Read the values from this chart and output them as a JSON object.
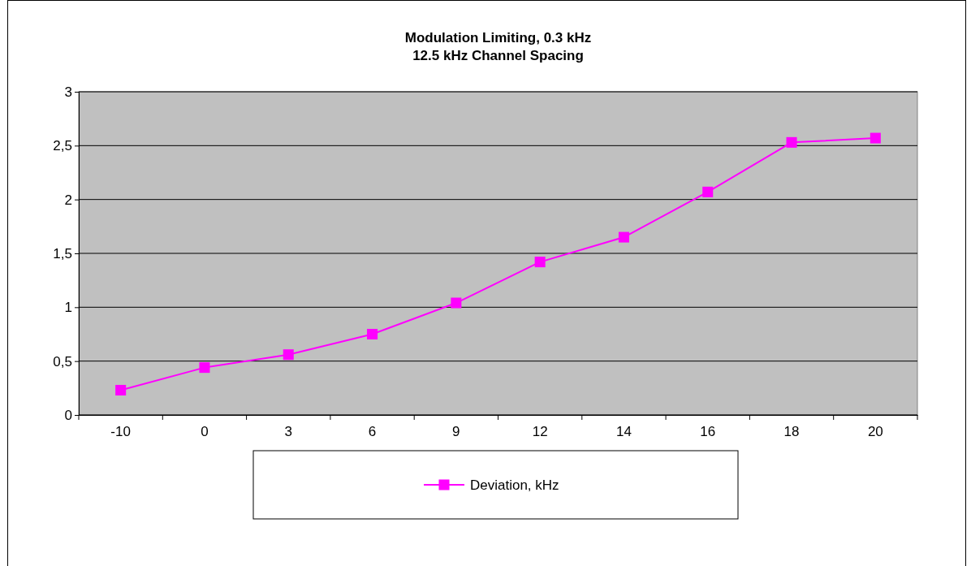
{
  "chart_data": {
    "type": "line",
    "title": "Modulation Limiting, 0.3 kHz\n12.5 kHz Channel Spacing",
    "categories": [
      "-10",
      "0",
      "3",
      "6",
      "9",
      "12",
      "14",
      "16",
      "18",
      "20"
    ],
    "series": [
      {
        "name": "Deviation, kHz",
        "color": "#ff00ff",
        "values": [
          0.23,
          0.44,
          0.56,
          0.75,
          1.04,
          1.42,
          1.65,
          2.07,
          2.53,
          2.57
        ]
      }
    ],
    "ylim": [
      0,
      3
    ],
    "yticks": [
      0,
      {
        "value": 0.5,
        "label": "0,5"
      },
      1,
      {
        "value": 1.5,
        "label": "1,5"
      },
      2,
      {
        "value": 2.5,
        "label": "2,5"
      },
      3
    ],
    "grid": "y",
    "legend": "bottom",
    "marker": "square",
    "line_style": "solid"
  }
}
